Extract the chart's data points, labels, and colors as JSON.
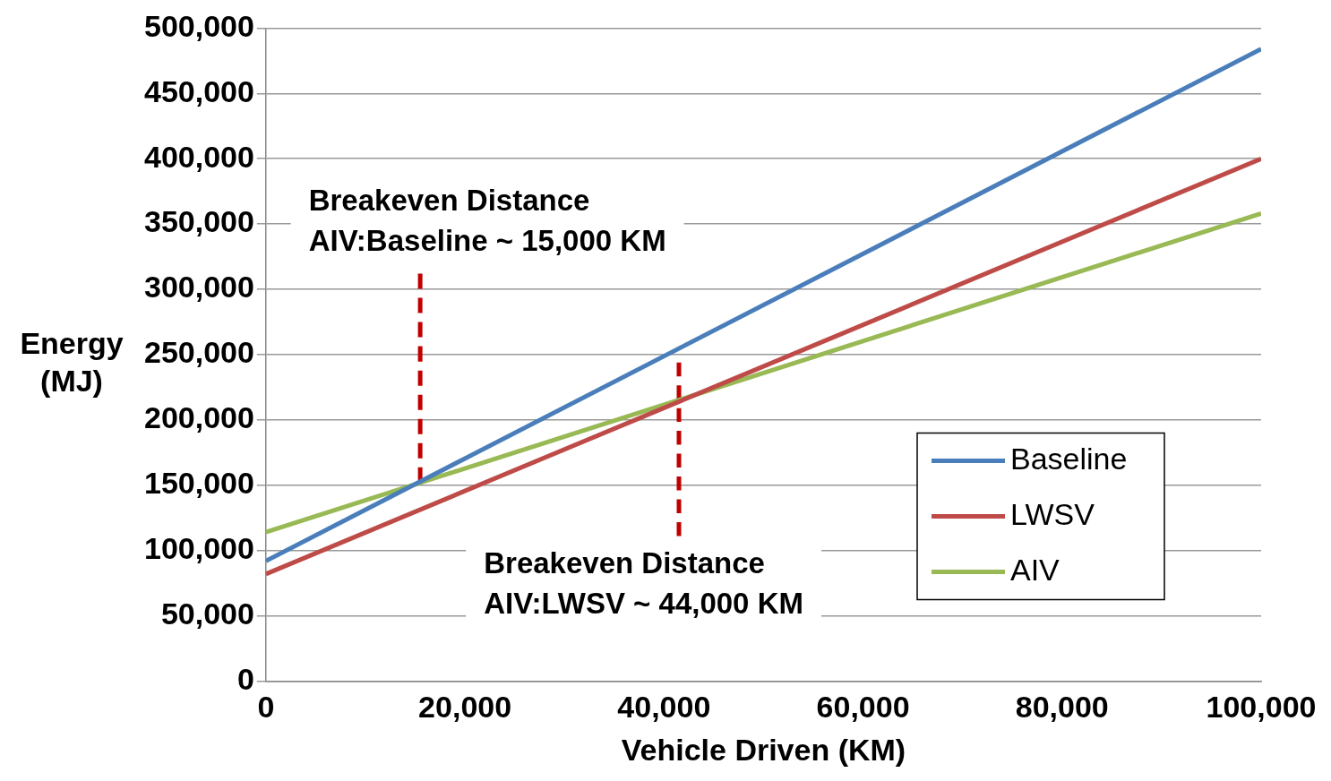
{
  "chart_data": {
    "type": "line",
    "xlabel": "Vehicle Driven (KM)",
    "ylabel": "Energy (MJ)",
    "xlim": [
      0,
      100000
    ],
    "xticks": [
      {
        "value": 0,
        "label": "0"
      },
      {
        "value": 20000,
        "label": "20,000"
      },
      {
        "value": 40000,
        "label": "40,000"
      },
      {
        "value": 60000,
        "label": "60,000"
      },
      {
        "value": 80000,
        "label": "80,000"
      },
      {
        "value": 100000,
        "label": "100,000"
      }
    ],
    "ylim": [
      0,
      500000
    ],
    "yticks": [
      {
        "value": 0,
        "label": "0"
      },
      {
        "value": 50000,
        "label": "50,000"
      },
      {
        "value": 100000,
        "label": "100,000"
      },
      {
        "value": 150000,
        "label": "150,000"
      },
      {
        "value": 200000,
        "label": "200,000"
      },
      {
        "value": 250000,
        "label": "250,000"
      },
      {
        "value": 300000,
        "label": "300,000"
      },
      {
        "value": 350000,
        "label": "350,000"
      },
      {
        "value": 400000,
        "label": "400,000"
      },
      {
        "value": 450000,
        "label": "450,000"
      },
      {
        "value": 500000,
        "label": "500,000"
      }
    ],
    "grid": "y",
    "legend": "right",
    "marker": "none",
    "series": [
      {
        "name": "Baseline",
        "color": "#4a7ebb",
        "x": [
          0,
          100000
        ],
        "values": [
          92000,
          484000
        ]
      },
      {
        "name": "LWSV",
        "color": "#be4b48",
        "x": [
          0,
          100000
        ],
        "values": [
          82000,
          400000
        ]
      },
      {
        "name": "AIV",
        "color": "#98b954",
        "x": [
          0,
          100000
        ],
        "values": [
          114000,
          358000
        ]
      },
      {
        "color": "#c00000",
        "line_style": "dashed",
        "x": [
          15500,
          15500
        ],
        "values": [
          152000,
          312000
        ]
      },
      {
        "color": "#c00000",
        "line_style": "dashed",
        "x": [
          41500,
          41500
        ],
        "values": [
          111000,
          244000
        ]
      }
    ],
    "annotations": [
      "Breakeven Distance\nAIV:Baseline ~ 15,000 KM",
      "Breakeven Distance\nAIV:LWSV ~ 44,000 KM"
    ]
  }
}
